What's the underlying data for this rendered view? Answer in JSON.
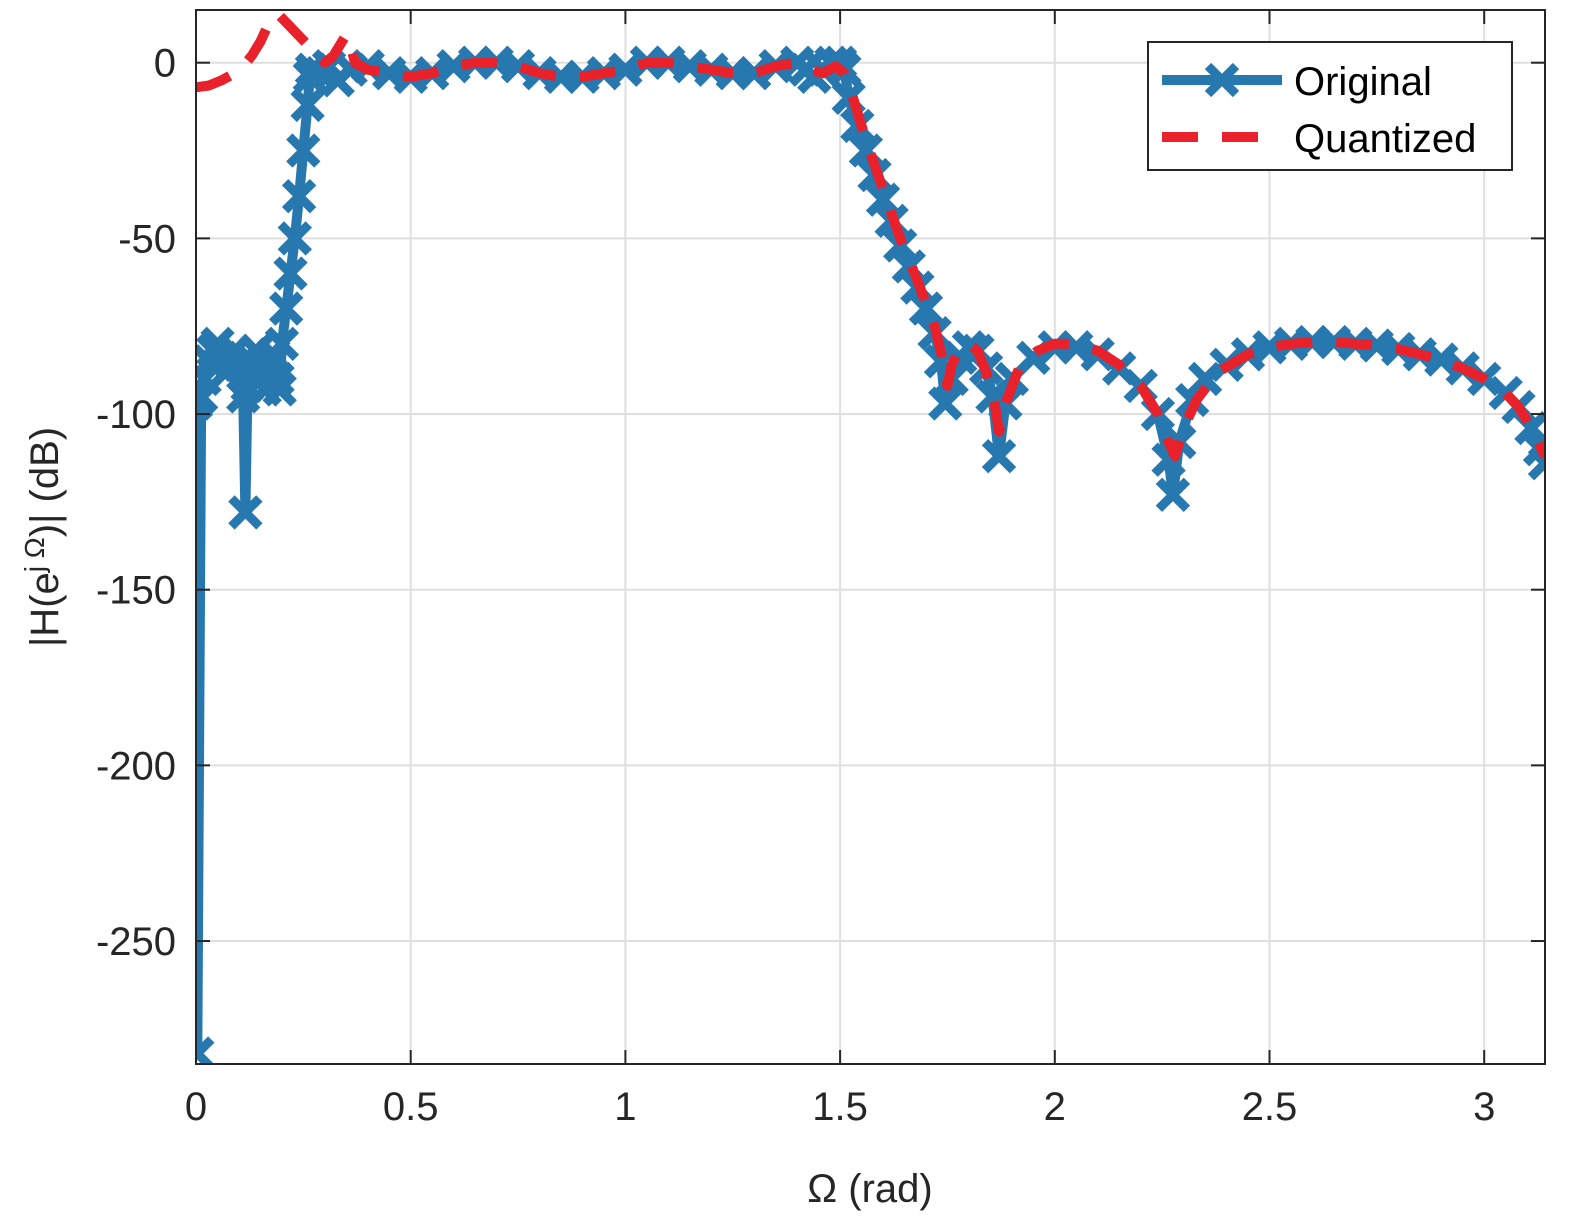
{
  "chart_data": {
    "type": "line",
    "xlabel": "Ω (rad)",
    "ylabel": "|H(e^{jΩ})| (dB)",
    "ylabel_parts": {
      "pre": "|H(e",
      "sup": "j Ω",
      "post": ")| (dB)"
    },
    "xlim": [
      0,
      3.1416
    ],
    "ylim": [
      -285,
      15
    ],
    "xticks": [
      0,
      0.5,
      1,
      1.5,
      2,
      2.5,
      3
    ],
    "xtick_labels": [
      "0",
      "0.5",
      "1",
      "1.5",
      "2",
      "2.5",
      "3"
    ],
    "yticks": [
      0,
      -50,
      -100,
      -150,
      -200,
      -250
    ],
    "ytick_labels": [
      "0",
      "-50",
      "-100",
      "-150",
      "-200",
      "-250"
    ],
    "grid": true,
    "legend_position": "top-right",
    "series": [
      {
        "name": "Original",
        "color": "#2878b0",
        "style": "solid-with-x-markers",
        "points": [
          [
            0.0,
            -97
          ],
          [
            0.003,
            -282
          ],
          [
            0.012,
            -95
          ],
          [
            0.02,
            -90
          ],
          [
            0.03,
            -85
          ],
          [
            0.04,
            -82
          ],
          [
            0.05,
            -80
          ],
          [
            0.06,
            -84
          ],
          [
            0.07,
            -88
          ],
          [
            0.08,
            -85
          ],
          [
            0.09,
            -82
          ],
          [
            0.1,
            -86
          ],
          [
            0.11,
            -95
          ],
          [
            0.115,
            -128
          ],
          [
            0.12,
            -92
          ],
          [
            0.13,
            -86
          ],
          [
            0.14,
            -82
          ],
          [
            0.15,
            -88
          ],
          [
            0.16,
            -93
          ],
          [
            0.17,
            -85
          ],
          [
            0.18,
            -83
          ],
          [
            0.19,
            -90
          ],
          [
            0.195,
            -93
          ],
          [
            0.2,
            -80
          ],
          [
            0.21,
            -70
          ],
          [
            0.22,
            -60
          ],
          [
            0.23,
            -50
          ],
          [
            0.24,
            -38
          ],
          [
            0.25,
            -25
          ],
          [
            0.26,
            -12
          ],
          [
            0.265,
            -4
          ],
          [
            0.27,
            -2
          ],
          [
            0.29,
            -3
          ],
          [
            0.31,
            -1
          ],
          [
            0.33,
            -5
          ],
          [
            0.36,
            -2
          ],
          [
            0.4,
            -1
          ],
          [
            0.45,
            -3
          ],
          [
            0.5,
            -4
          ],
          [
            0.55,
            -3
          ],
          [
            0.6,
            -1
          ],
          [
            0.65,
            0
          ],
          [
            0.7,
            0
          ],
          [
            0.75,
            -1
          ],
          [
            0.8,
            -3
          ],
          [
            0.85,
            -4
          ],
          [
            0.9,
            -4
          ],
          [
            0.95,
            -3
          ],
          [
            1.0,
            -2
          ],
          [
            1.05,
            0
          ],
          [
            1.1,
            0
          ],
          [
            1.15,
            -1
          ],
          [
            1.2,
            -2
          ],
          [
            1.25,
            -3
          ],
          [
            1.3,
            -3
          ],
          [
            1.35,
            -1
          ],
          [
            1.4,
            0
          ],
          [
            1.42,
            -2
          ],
          [
            1.44,
            -4
          ],
          [
            1.46,
            -2
          ],
          [
            1.48,
            0
          ],
          [
            1.5,
            0
          ],
          [
            1.51,
            -2
          ],
          [
            1.52,
            -10
          ],
          [
            1.54,
            -18
          ],
          [
            1.56,
            -25
          ],
          [
            1.58,
            -32
          ],
          [
            1.6,
            -39
          ],
          [
            1.62,
            -45
          ],
          [
            1.64,
            -52
          ],
          [
            1.66,
            -58
          ],
          [
            1.68,
            -64
          ],
          [
            1.7,
            -70
          ],
          [
            1.72,
            -77
          ],
          [
            1.735,
            -85
          ],
          [
            1.745,
            -97
          ],
          [
            1.76,
            -90
          ],
          [
            1.78,
            -84
          ],
          [
            1.8,
            -81
          ],
          [
            1.82,
            -82
          ],
          [
            1.84,
            -87
          ],
          [
            1.855,
            -95
          ],
          [
            1.87,
            -112
          ],
          [
            1.885,
            -97
          ],
          [
            1.9,
            -90
          ],
          [
            1.95,
            -84
          ],
          [
            2.0,
            -81
          ],
          [
            2.05,
            -81
          ],
          [
            2.1,
            -83
          ],
          [
            2.15,
            -87
          ],
          [
            2.2,
            -92
          ],
          [
            2.24,
            -100
          ],
          [
            2.265,
            -113
          ],
          [
            2.275,
            -123
          ],
          [
            2.29,
            -108
          ],
          [
            2.32,
            -96
          ],
          [
            2.35,
            -90
          ],
          [
            2.4,
            -86
          ],
          [
            2.45,
            -83
          ],
          [
            2.5,
            -81
          ],
          [
            2.55,
            -80
          ],
          [
            2.6,
            -79.5
          ],
          [
            2.65,
            -79.5
          ],
          [
            2.7,
            -80
          ],
          [
            2.75,
            -80.5
          ],
          [
            2.8,
            -81.5
          ],
          [
            2.85,
            -83
          ],
          [
            2.9,
            -84.5
          ],
          [
            2.95,
            -87
          ],
          [
            3.0,
            -90
          ],
          [
            3.05,
            -94
          ],
          [
            3.08,
            -98
          ],
          [
            3.11,
            -104
          ],
          [
            3.13,
            -110
          ],
          [
            3.1416,
            -114
          ]
        ]
      },
      {
        "name": "Quantized",
        "color": "#e8212b",
        "style": "dashed",
        "points": [
          [
            0.0,
            -7
          ],
          [
            0.03,
            -6.5
          ],
          [
            0.06,
            -5
          ],
          [
            0.09,
            -3
          ],
          [
            0.11,
            -1
          ],
          [
            0.13,
            2
          ],
          [
            0.15,
            6
          ],
          [
            0.165,
            10
          ],
          [
            0.18,
            13
          ],
          [
            0.19,
            14
          ],
          [
            0.3,
            0
          ],
          [
            0.32,
            2
          ],
          [
            0.34,
            6
          ],
          [
            0.35,
            8
          ],
          [
            0.36,
            5
          ],
          [
            0.37,
            0
          ],
          [
            0.4,
            -2
          ],
          [
            0.45,
            -3
          ],
          [
            0.5,
            -4
          ],
          [
            0.55,
            -3
          ],
          [
            0.6,
            -1
          ],
          [
            0.65,
            0
          ],
          [
            0.7,
            0
          ],
          [
            0.75,
            -1
          ],
          [
            0.8,
            -3
          ],
          [
            0.85,
            -4
          ],
          [
            0.9,
            -4
          ],
          [
            0.95,
            -3
          ],
          [
            1.0,
            -2
          ],
          [
            1.05,
            0
          ],
          [
            1.1,
            0
          ],
          [
            1.15,
            -1
          ],
          [
            1.2,
            -2
          ],
          [
            1.25,
            -3
          ],
          [
            1.3,
            -3
          ],
          [
            1.35,
            -1
          ],
          [
            1.4,
            0
          ],
          [
            1.43,
            -2
          ],
          [
            1.46,
            -3
          ],
          [
            1.49,
            -1
          ],
          [
            1.51,
            -3
          ],
          [
            1.53,
            -10
          ],
          [
            1.56,
            -22
          ],
          [
            1.6,
            -36
          ],
          [
            1.64,
            -50
          ],
          [
            1.68,
            -62
          ],
          [
            1.72,
            -75
          ],
          [
            1.74,
            -85
          ],
          [
            1.75,
            -92
          ],
          [
            1.76,
            -86
          ],
          [
            1.78,
            -81
          ],
          [
            1.8,
            -80
          ],
          [
            1.82,
            -82
          ],
          [
            1.84,
            -88
          ],
          [
            1.86,
            -97
          ],
          [
            1.87,
            -105
          ],
          [
            1.885,
            -97
          ],
          [
            1.92,
            -86
          ],
          [
            1.96,
            -82
          ],
          [
            2.0,
            -80
          ],
          [
            2.05,
            -80
          ],
          [
            2.1,
            -82
          ],
          [
            2.15,
            -86
          ],
          [
            2.2,
            -92
          ],
          [
            2.24,
            -100
          ],
          [
            2.265,
            -108
          ],
          [
            2.28,
            -112
          ],
          [
            2.3,
            -104
          ],
          [
            2.33,
            -96
          ],
          [
            2.38,
            -88
          ],
          [
            2.45,
            -83
          ],
          [
            2.5,
            -81
          ],
          [
            2.55,
            -80
          ],
          [
            2.6,
            -79.5
          ],
          [
            2.65,
            -79.5
          ],
          [
            2.7,
            -80
          ],
          [
            2.75,
            -80.5
          ],
          [
            2.8,
            -81.5
          ],
          [
            2.85,
            -83
          ],
          [
            2.9,
            -84.5
          ],
          [
            2.95,
            -87
          ],
          [
            3.0,
            -90
          ],
          [
            3.05,
            -94
          ],
          [
            3.08,
            -98
          ],
          [
            3.11,
            -104
          ],
          [
            3.1416,
            -112
          ]
        ]
      }
    ],
    "legend": [
      {
        "label": "Original"
      },
      {
        "label": "Quantized"
      }
    ]
  }
}
